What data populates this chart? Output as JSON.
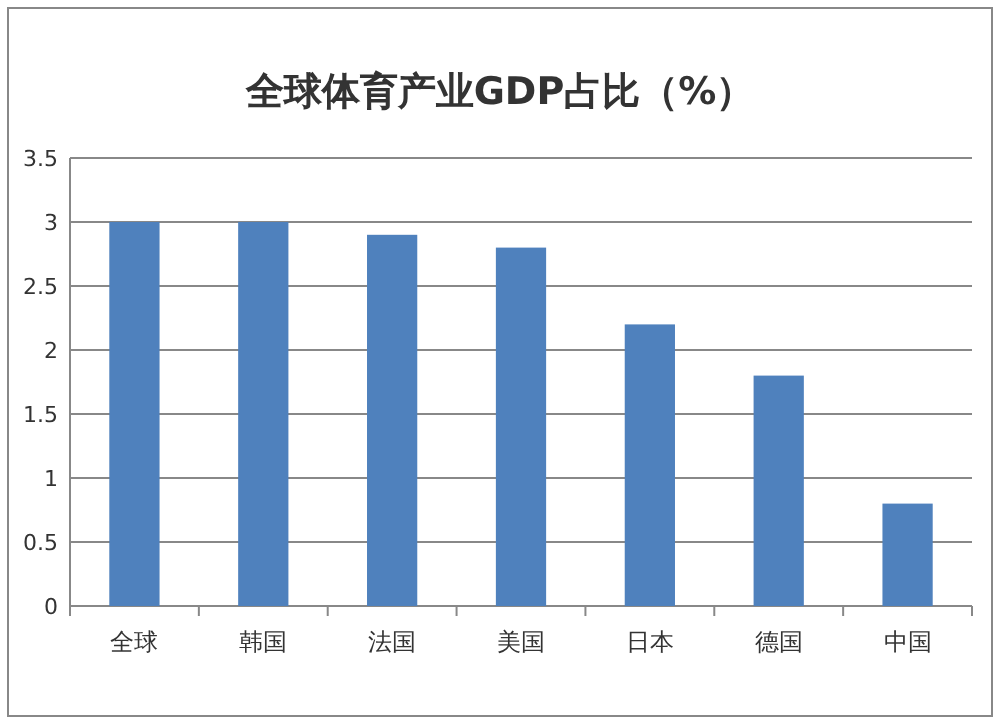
{
  "chart_data": {
    "type": "bar",
    "title": "全球体育产业GDP占比（%）",
    "categories": [
      "全球",
      "韩国",
      "法国",
      "美国",
      "日本",
      "德国",
      "中国"
    ],
    "values": [
      3,
      3,
      2.9,
      2.8,
      2.2,
      1.8,
      0.8
    ],
    "color": "#4f81bd",
    "ylim": [
      0,
      3.5
    ],
    "yticks": [
      0,
      0.5,
      1,
      1.5,
      2,
      2.5,
      3,
      3.5
    ],
    "grid": "y"
  }
}
